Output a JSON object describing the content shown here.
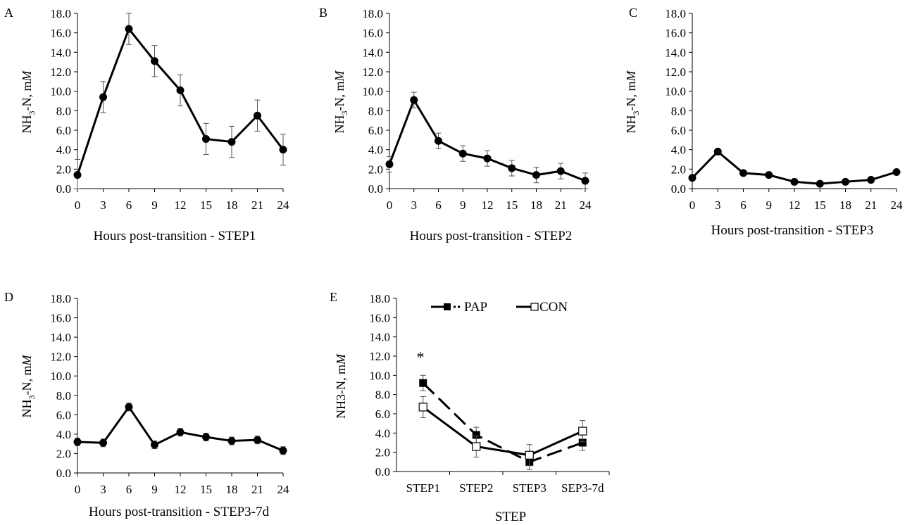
{
  "figure": {
    "panels": [
      {
        "label": "A",
        "ylabel_main": "NH",
        "ylabel_sub": "3",
        "ylabel_rest": "-N, m",
        "ylabel_unit": "M",
        "xlabel": "Hours post-transition - STEP1"
      },
      {
        "label": "B",
        "ylabel_main": "NH",
        "ylabel_sub": "3",
        "ylabel_rest": "-N, m",
        "ylabel_unit": "M",
        "xlabel": "Hours post-transition - STEP2"
      },
      {
        "label": "C",
        "ylabel_main": "NH",
        "ylabel_sub": "3",
        "ylabel_rest": "-N, m",
        "ylabel_unit": "M",
        "xlabel": "Hours post-transition - STEP3"
      },
      {
        "label": "D",
        "ylabel_main": "NH",
        "ylabel_sub": "3",
        "ylabel_rest": "-N, m",
        "ylabel_unit": "M",
        "xlabel": "Hours post-transition - STEP3-7d"
      },
      {
        "label": "E",
        "ylabel_main": "NH3-N, m",
        "ylabel_sub": "",
        "ylabel_rest": "",
        "ylabel_unit": "M",
        "xlabel": "STEP"
      }
    ],
    "legend": {
      "pap": "PAP",
      "con": "CON"
    },
    "significance": "*"
  },
  "chart_data": [
    {
      "type": "line",
      "panel": "A",
      "x": [
        0,
        3,
        6,
        9,
        12,
        15,
        18,
        21,
        24
      ],
      "x_tick_labels": [
        "0",
        "3",
        "6",
        "9",
        "12",
        "15",
        "18",
        "21",
        "24"
      ],
      "y_tick_labels": [
        "0.0",
        "2.0",
        "4.0",
        "6.0",
        "8.0",
        "10.0",
        "12.0",
        "14.0",
        "16.0",
        "18.0"
      ],
      "ylim": [
        0,
        18
      ],
      "series": [
        {
          "values": [
            1.4,
            9.4,
            16.4,
            13.1,
            10.1,
            5.1,
            4.8,
            7.5,
            4.0
          ],
          "error": [
            1.6,
            1.6,
            1.6,
            1.6,
            1.6,
            1.6,
            1.6,
            1.6,
            1.6
          ]
        }
      ]
    },
    {
      "type": "line",
      "panel": "B",
      "x": [
        0,
        3,
        6,
        9,
        12,
        15,
        18,
        21,
        24
      ],
      "x_tick_labels": [
        "0",
        "3",
        "6",
        "9",
        "12",
        "15",
        "18",
        "21",
        "24"
      ],
      "y_tick_labels": [
        "0.0",
        "2.0",
        "4.0",
        "6.0",
        "8.0",
        "10.0",
        "12.0",
        "14.0",
        "16.0",
        "18.0"
      ],
      "ylim": [
        0,
        18
      ],
      "series": [
        {
          "values": [
            2.5,
            9.1,
            4.9,
            3.6,
            3.1,
            2.1,
            1.4,
            1.8,
            0.8
          ],
          "error": [
            0.8,
            0.8,
            0.8,
            0.8,
            0.8,
            0.8,
            0.8,
            0.8,
            0.8
          ]
        }
      ]
    },
    {
      "type": "line",
      "panel": "C",
      "x": [
        0,
        3,
        6,
        9,
        12,
        15,
        18,
        21,
        24
      ],
      "x_tick_labels": [
        "0",
        "3",
        "6",
        "9",
        "12",
        "15",
        "18",
        "21",
        "24"
      ],
      "y_tick_labels": [
        "0.0",
        "2.0",
        "4.0",
        "6.0",
        "8.0",
        "10.0",
        "12.0",
        "14.0",
        "16.0",
        "18.0"
      ],
      "ylim": [
        0,
        18
      ],
      "series": [
        {
          "values": [
            1.1,
            3.8,
            1.6,
            1.4,
            0.7,
            0.5,
            0.7,
            0.9,
            1.7
          ],
          "error": [
            0.25,
            0.25,
            0.25,
            0.25,
            0.25,
            0.25,
            0.25,
            0.25,
            0.25
          ]
        }
      ]
    },
    {
      "type": "line",
      "panel": "D",
      "x": [
        0,
        3,
        6,
        9,
        12,
        15,
        18,
        21,
        24
      ],
      "x_tick_labels": [
        "0",
        "3",
        "6",
        "9",
        "12",
        "15",
        "18",
        "21",
        "24"
      ],
      "y_tick_labels": [
        "0.0",
        "2.0",
        "4.0",
        "6.0",
        "8.0",
        "10.0",
        "12.0",
        "14.0",
        "16.0",
        "18.0"
      ],
      "ylim": [
        0,
        18
      ],
      "series": [
        {
          "values": [
            3.2,
            3.1,
            6.8,
            2.9,
            4.2,
            3.7,
            3.3,
            3.4,
            2.3
          ],
          "error": [
            0.4,
            0.4,
            0.4,
            0.4,
            0.4,
            0.4,
            0.4,
            0.4,
            0.4
          ]
        }
      ]
    },
    {
      "type": "line",
      "panel": "E",
      "categories": [
        "STEP1",
        "STEP2",
        "STEP3",
        "SEP3-7d"
      ],
      "y_tick_labels": [
        "0.0",
        "2.0",
        "4.0",
        "6.0",
        "8.0",
        "10.0",
        "12.0",
        "14.0",
        "16.0",
        "18.0"
      ],
      "ylim": [
        0,
        18
      ],
      "series": [
        {
          "name": "PAP",
          "values": [
            9.2,
            3.8,
            1.0,
            3.0
          ],
          "error": [
            0.8,
            0.8,
            0.8,
            0.8
          ],
          "marker": "filled-square",
          "dash": "dashed",
          "color": "#000000"
        },
        {
          "name": "CON",
          "values": [
            6.7,
            2.6,
            1.7,
            4.2
          ],
          "error": [
            1.1,
            1.1,
            1.1,
            1.1
          ],
          "marker": "open-square",
          "dash": "solid",
          "color": "#000000"
        }
      ],
      "annotations": [
        {
          "text": "*",
          "category": "STEP1"
        }
      ]
    }
  ]
}
